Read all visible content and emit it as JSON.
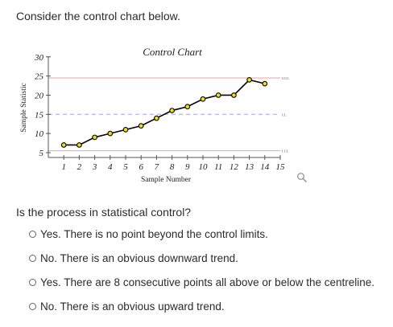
{
  "prompt": "Consider the control chart below.",
  "question": "Is the process in statistical control?",
  "options": [
    {
      "label": "Yes. There is no point beyond the control limits."
    },
    {
      "label": "No. There is an obvious downward trend."
    },
    {
      "label": "Yes. There are 8 consecutive points all above or below the centreline."
    },
    {
      "label": "No. There is an obvious upward trend."
    }
  ],
  "icons": {
    "zoom": "magnifier-icon",
    "radio": "radio-button-icon"
  },
  "chart_data": {
    "type": "line",
    "title": "Control Chart",
    "xlabel": "Sample Number",
    "ylabel": "Sample Statistic",
    "x": [
      1,
      2,
      3,
      4,
      5,
      6,
      7,
      8,
      9,
      10,
      11,
      12,
      13,
      14
    ],
    "y": [
      7,
      7,
      9,
      10,
      11,
      12,
      14,
      16,
      17,
      19,
      20,
      20,
      24,
      23
    ],
    "xticks": [
      "1",
      "2",
      "3",
      "4",
      "5",
      "6",
      "7",
      "8",
      "9",
      "10",
      "11",
      "12",
      "13",
      "14",
      "15"
    ],
    "yticks": [
      "5",
      "10",
      "15",
      "20",
      "25",
      "30"
    ],
    "xlim": [
      0,
      15
    ],
    "ylim": [
      5,
      31
    ],
    "control_lines": [
      {
        "label": "UCL",
        "value": 24.5,
        "color": "#f0a0a0",
        "style": "solid"
      },
      {
        "label": "CL",
        "value": 15,
        "color": "#a0a0f0",
        "style": "dashed"
      },
      {
        "label": "LCL",
        "value": 5.5,
        "color": "#f0a0a0",
        "style": "solid"
      }
    ],
    "grid": false,
    "line_color": "#000000",
    "marker_fill": "#f5e000"
  }
}
